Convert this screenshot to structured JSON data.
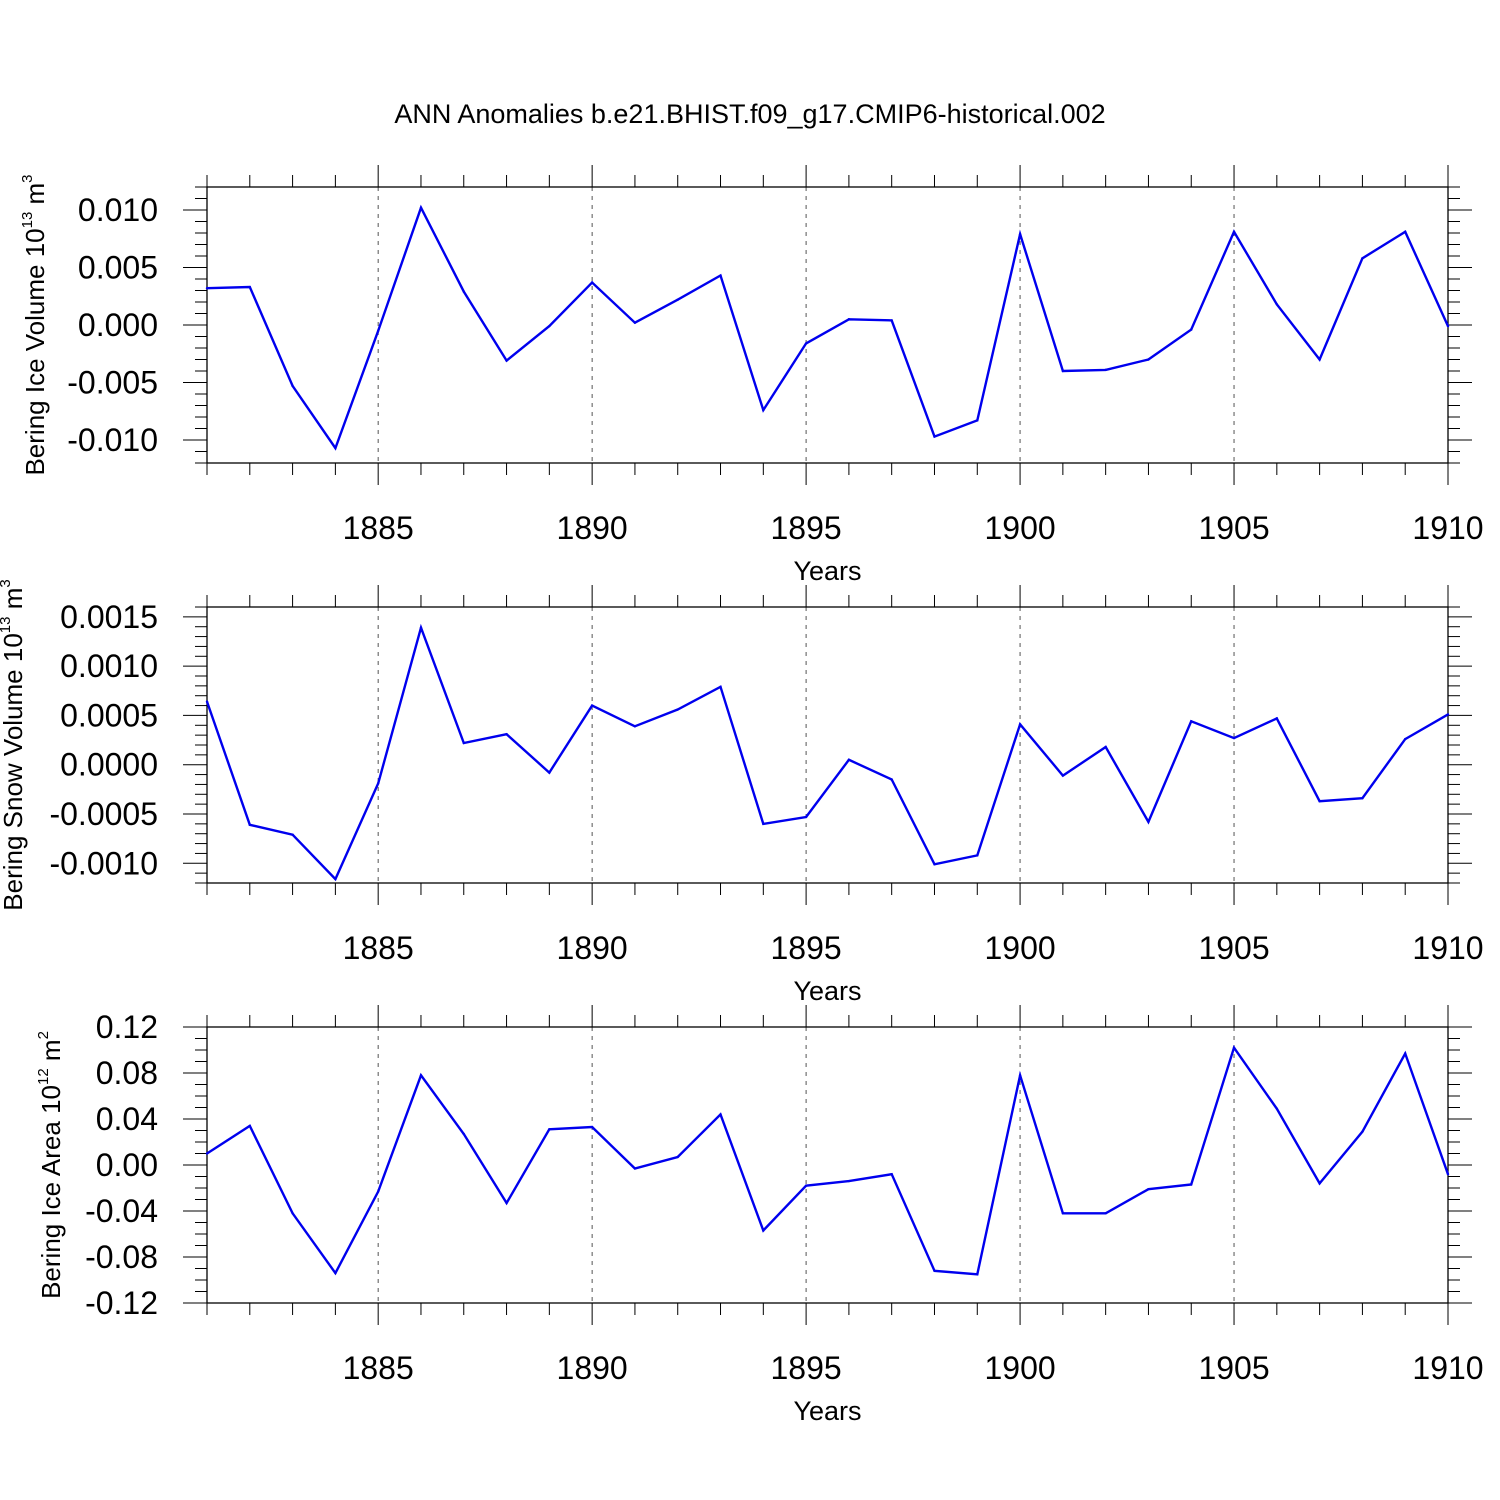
{
  "title": "ANN Anomalies b.e21.BHIST.f09_g17.CMIP6-historical.002",
  "colors": {
    "line": "#0000ee",
    "grid": "#555555",
    "axis": "#000000"
  },
  "chart_data": [
    {
      "type": "line",
      "ylabel": "Bering Ice Volume 10",
      "ylabel_exp": "13",
      "ylabel_unit": " m",
      "ylabel_unit_exp": "3",
      "xlabel": "Years",
      "xlim": [
        1881,
        1910
      ],
      "ylim": [
        -0.012,
        0.012
      ],
      "yticks": [
        -0.01,
        -0.005,
        0.0,
        0.005,
        0.01
      ],
      "ytick_labels": [
        "-0.010",
        "-0.005",
        "0.000",
        "0.005",
        "0.010"
      ],
      "yminor_step": 0.001,
      "xticks": [
        1885,
        1890,
        1895,
        1900,
        1905,
        1910
      ],
      "xtick_labels": [
        "1885",
        "1890",
        "1895",
        "1900",
        "1905",
        "1910"
      ],
      "grid_x": [
        1885,
        1890,
        1895,
        1900,
        1905
      ],
      "x": [
        1881,
        1882,
        1883,
        1884,
        1885,
        1886,
        1887,
        1888,
        1889,
        1890,
        1891,
        1892,
        1893,
        1894,
        1895,
        1896,
        1897,
        1898,
        1899,
        1900,
        1901,
        1902,
        1903,
        1904,
        1905,
        1906,
        1907,
        1908,
        1909,
        1910
      ],
      "series": [
        {
          "name": "Bering Ice Volume",
          "values": [
            0.0032,
            0.0033,
            -0.0053,
            -0.0107,
            -0.0005,
            0.0102,
            0.0029,
            -0.0031,
            -0.0001,
            0.0037,
            0.0002,
            0.0022,
            0.0043,
            -0.0074,
            -0.0016,
            0.0005,
            0.0004,
            -0.0097,
            -0.0083,
            0.0079,
            -0.004,
            -0.0039,
            -0.003,
            -0.0004,
            0.0081,
            0.0018,
            -0.003,
            0.0058,
            0.0081,
            -0.0001
          ]
        }
      ]
    },
    {
      "type": "line",
      "ylabel": "Bering Snow Volume 10",
      "ylabel_exp": "13",
      "ylabel_unit": " m",
      "ylabel_unit_exp": "3",
      "xlabel": "Years",
      "xlim": [
        1881,
        1910
      ],
      "ylim": [
        -0.0012,
        0.0016
      ],
      "yticks": [
        -0.001,
        -0.0005,
        0.0,
        0.0005,
        0.001,
        0.0015
      ],
      "ytick_labels": [
        "-0.0010",
        "-0.0005",
        "0.0000",
        "0.0005",
        "0.0010",
        "0.0015"
      ],
      "yminor_step": 0.0001,
      "xticks": [
        1885,
        1890,
        1895,
        1900,
        1905,
        1910
      ],
      "xtick_labels": [
        "1885",
        "1890",
        "1895",
        "1900",
        "1905",
        "1910"
      ],
      "grid_x": [
        1885,
        1890,
        1895,
        1900,
        1905
      ],
      "x": [
        1881,
        1882,
        1883,
        1884,
        1885,
        1886,
        1887,
        1888,
        1889,
        1890,
        1891,
        1892,
        1893,
        1894,
        1895,
        1896,
        1897,
        1898,
        1899,
        1900,
        1901,
        1902,
        1903,
        1904,
        1905,
        1906,
        1907,
        1908,
        1909,
        1910
      ],
      "series": [
        {
          "name": "Bering Snow Volume",
          "values": [
            0.00064,
            -0.00061,
            -0.00071,
            -0.00116,
            -0.00019,
            0.00139,
            0.00022,
            0.00031,
            -8e-05,
            0.0006,
            0.00039,
            0.00056,
            0.00079,
            -0.0006,
            -0.00053,
            5e-05,
            -0.00015,
            -0.00101,
            -0.00092,
            0.00041,
            -0.00011,
            0.00018,
            -0.00058,
            0.00044,
            0.00027,
            0.00047,
            -0.00037,
            -0.00034,
            0.00026,
            0.00051
          ]
        }
      ]
    },
    {
      "type": "line",
      "ylabel": "Bering Ice Area 10",
      "ylabel_exp": "12",
      "ylabel_unit": " m",
      "ylabel_unit_exp": "2",
      "xlabel": "Years",
      "xlim": [
        1881,
        1910
      ],
      "ylim": [
        -0.12,
        0.12
      ],
      "yticks": [
        -0.12,
        -0.08,
        -0.04,
        0.0,
        0.04,
        0.08,
        0.12
      ],
      "ytick_labels": [
        "-0.12",
        "-0.08",
        "-0.04",
        "0.00",
        "0.04",
        "0.08",
        "0.12"
      ],
      "yminor_step": 0.01,
      "xticks": [
        1885,
        1890,
        1895,
        1900,
        1905,
        1910
      ],
      "xtick_labels": [
        "1885",
        "1890",
        "1895",
        "1900",
        "1905",
        "1910"
      ],
      "grid_x": [
        1885,
        1890,
        1895,
        1900,
        1905
      ],
      "x": [
        1881,
        1882,
        1883,
        1884,
        1885,
        1886,
        1887,
        1888,
        1889,
        1890,
        1891,
        1892,
        1893,
        1894,
        1895,
        1896,
        1897,
        1898,
        1899,
        1900,
        1901,
        1902,
        1903,
        1904,
        1905,
        1906,
        1907,
        1908,
        1909,
        1910
      ],
      "series": [
        {
          "name": "Bering Ice Area",
          "values": [
            0.01,
            0.034,
            -0.042,
            -0.094,
            -0.023,
            0.078,
            0.027,
            -0.033,
            0.031,
            0.033,
            -0.003,
            0.007,
            0.044,
            -0.057,
            -0.018,
            -0.014,
            -0.008,
            -0.092,
            -0.095,
            0.078,
            -0.042,
            -0.042,
            -0.021,
            -0.017,
            0.102,
            0.049,
            -0.016,
            0.029,
            0.097,
            -0.008
          ]
        }
      ]
    }
  ]
}
